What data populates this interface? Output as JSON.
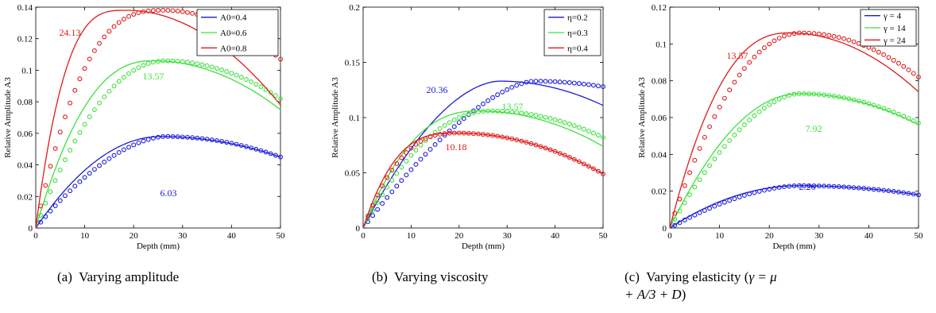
{
  "figure": {
    "captions": [
      {
        "prefix": "(a)",
        "text": "Varying amplitude"
      },
      {
        "prefix": "(b)",
        "text": "Varying viscosity"
      },
      {
        "prefix": "(c)",
        "text": "Varying elasticity (",
        "formula": "γ = μ + A/3 + D",
        "suffix": ")"
      }
    ]
  },
  "chart_data": [
    {
      "type": "line",
      "xlabel": "Depth (mm)",
      "ylabel": "Relative Amplitude A3",
      "xlim": [
        0,
        50
      ],
      "ylim": [
        0,
        0.14
      ],
      "xticks": [
        0,
        10,
        20,
        30,
        40,
        50
      ],
      "yticks": [
        0,
        0.02,
        0.04,
        0.06,
        0.08,
        0.1,
        0.12,
        0.14
      ],
      "ytick_labels": [
        "0",
        "0.02",
        "0.04",
        "0.06",
        "0.08",
        "0.1",
        "0.12",
        "0.14"
      ],
      "xtick_labels": [
        "0",
        "10",
        "20",
        "30",
        "40",
        "50"
      ],
      "legend_position": "top-right",
      "series": [
        {
          "name": "A0=0.4",
          "color": "#1a1adb",
          "line_peak": 0.058,
          "line_peak_x": 25.5,
          "line_end": 0.045,
          "marker_peak": 0.058,
          "marker_peak_x": 26.5,
          "marker_end": 0.045,
          "annotation": "6.03",
          "shape": 2.0
        },
        {
          "name": "A0=0.6",
          "color": "#3de03d",
          "line_peak": 0.106,
          "line_peak_x": 24,
          "line_end": 0.075,
          "marker_peak": 0.106,
          "marker_peak_x": 26.5,
          "marker_end": 0.082,
          "annotation": "13.57",
          "shape": 2.4
        },
        {
          "name": "A0=0.8",
          "color": "#e01a1a",
          "line_peak": 0.138,
          "line_peak_x": 18.5,
          "line_end": 0.078,
          "marker_peak": 0.138,
          "marker_peak_x": 26,
          "marker_end": 0.107,
          "annotation": "24.13",
          "shape": 3.2
        }
      ]
    },
    {
      "type": "line",
      "xlabel": "Depth (mm)",
      "ylabel": "Relative Amplitude A3",
      "xlim": [
        0,
        50
      ],
      "ylim": [
        0,
        0.2
      ],
      "xticks": [
        0,
        10,
        20,
        30,
        40,
        50
      ],
      "yticks": [
        0,
        0.05,
        0.1,
        0.15,
        0.2
      ],
      "ytick_labels": [
        "0",
        "0.05",
        "0.1",
        "0.15",
        "0.2"
      ],
      "xtick_labels": [
        "0",
        "10",
        "20",
        "30",
        "40",
        "50"
      ],
      "legend_position": "top-right",
      "series": [
        {
          "name": "η=0.2",
          "color": "#1a1adb",
          "line_peak": 0.133,
          "line_peak_x": 28.5,
          "line_end": 0.111,
          "marker_peak": 0.133,
          "marker_peak_x": 35.5,
          "marker_end": 0.128,
          "annotation": "20.36",
          "shape": 1.8
        },
        {
          "name": "η=0.3",
          "color": "#3de03d",
          "line_peak": 0.106,
          "line_peak_x": 24,
          "line_end": 0.074,
          "marker_peak": 0.106,
          "marker_peak_x": 26.5,
          "marker_end": 0.082,
          "annotation": "13.57",
          "shape": 2.4
        },
        {
          "name": "η=0.4",
          "color": "#e01a1a",
          "line_peak": 0.086,
          "line_peak_x": 19.5,
          "line_end": 0.049,
          "marker_peak": 0.086,
          "marker_peak_x": 19.5,
          "marker_end": 0.049,
          "annotation": "10.18",
          "shape": 3.0
        }
      ]
    },
    {
      "type": "line",
      "xlabel": "Depth (mm)",
      "ylabel": "Relative Amplitude A3",
      "xlim": [
        0,
        50
      ],
      "ylim": [
        0,
        0.12
      ],
      "xticks": [
        0,
        10,
        20,
        30,
        40,
        50
      ],
      "yticks": [
        0,
        0.02,
        0.04,
        0.06,
        0.08,
        0.1,
        0.12
      ],
      "ytick_labels": [
        "0",
        "0.02",
        "0.04",
        "0.06",
        "0.08",
        "0.1",
        "0.12"
      ],
      "xtick_labels": [
        "0",
        "10",
        "20",
        "30",
        "40",
        "50"
      ],
      "legend_position": "top-right",
      "series": [
        {
          "name": "γ = 4",
          "color": "#1a1adb",
          "line_peak": 0.023,
          "line_peak_x": 26,
          "line_end": 0.018,
          "marker_peak": 0.023,
          "marker_peak_x": 26,
          "marker_end": 0.018,
          "annotation": "2.26",
          "shape": 2.0
        },
        {
          "name": "γ = 14",
          "color": "#3de03d",
          "line_peak": 0.073,
          "line_peak_x": 26,
          "line_end": 0.056,
          "marker_peak": 0.073,
          "marker_peak_x": 26,
          "marker_end": 0.057,
          "annotation": "7.92",
          "shape": 2.0
        },
        {
          "name": "γ = 24",
          "color": "#e01a1a",
          "line_peak": 0.106,
          "line_peak_x": 24,
          "line_end": 0.074,
          "marker_peak": 0.106,
          "marker_peak_x": 26.5,
          "marker_end": 0.082,
          "annotation": "13.57",
          "shape": 2.4
        }
      ]
    }
  ]
}
